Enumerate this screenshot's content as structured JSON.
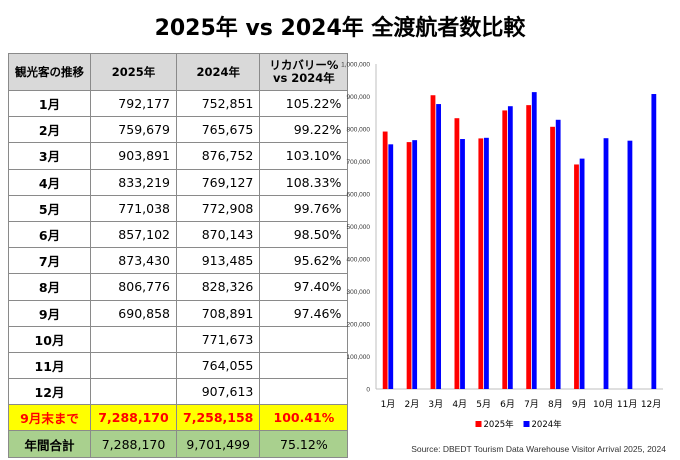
{
  "title": "2025年 vs 2024年 全渡航者数比較",
  "table": {
    "headers": [
      "観光客の推移",
      "2025年",
      "2024年",
      "リカバリー% vs 2024年"
    ],
    "rows": [
      {
        "month": "1月",
        "y2025": "792,177",
        "y2024": "752,851",
        "pct": "105.22%"
      },
      {
        "month": "2月",
        "y2025": "759,679",
        "y2024": "765,675",
        "pct": "99.22%"
      },
      {
        "month": "3月",
        "y2025": "903,891",
        "y2024": "876,752",
        "pct": "103.10%"
      },
      {
        "month": "4月",
        "y2025": "833,219",
        "y2024": "769,127",
        "pct": "108.33%"
      },
      {
        "month": "5月",
        "y2025": "771,038",
        "y2024": "772,908",
        "pct": "99.76%"
      },
      {
        "month": "6月",
        "y2025": "857,102",
        "y2024": "870,143",
        "pct": "98.50%"
      },
      {
        "month": "7月",
        "y2025": "873,430",
        "y2024": "913,485",
        "pct": "95.62%"
      },
      {
        "month": "8月",
        "y2025": "806,776",
        "y2024": "828,326",
        "pct": "97.40%"
      },
      {
        "month": "9月",
        "y2025": "690,858",
        "y2024": "708,891",
        "pct": "97.46%"
      },
      {
        "month": "10月",
        "y2025": "",
        "y2024": "771,673",
        "pct": ""
      },
      {
        "month": "11月",
        "y2025": "",
        "y2024": "764,055",
        "pct": ""
      },
      {
        "month": "12月",
        "y2025": "",
        "y2024": "907,613",
        "pct": ""
      }
    ],
    "ytd": {
      "label": "9月末まで",
      "y2025": "7,288,170",
      "y2024": "7,258,158",
      "pct": "100.41%"
    },
    "total": {
      "label": "年間合計",
      "y2025": "7,288,170",
      "y2024": "9,701,499",
      "pct": "75.12%"
    }
  },
  "source": "Source: DBEDT Tourism Data Warehouse Visitor Arrival 2025, 2024",
  "chart_data": {
    "type": "bar",
    "categories": [
      "1月",
      "2月",
      "3月",
      "4月",
      "5月",
      "6月",
      "7月",
      "8月",
      "9月",
      "10月",
      "11月",
      "12月"
    ],
    "series": [
      {
        "name": "2025年",
        "color": "#ff0000",
        "values": [
          792177,
          759679,
          903891,
          833219,
          771038,
          857102,
          873430,
          806776,
          690858,
          null,
          null,
          null
        ]
      },
      {
        "name": "2024年",
        "color": "#0000ff",
        "values": [
          752851,
          765675,
          876752,
          769127,
          772908,
          870143,
          913485,
          828326,
          708891,
          771673,
          764055,
          907613
        ]
      }
    ],
    "ylim": [
      0,
      1000000
    ],
    "yticks": [
      "0",
      "100,000",
      "200,000",
      "300,000",
      "400,000",
      "500,000",
      "600,000",
      "700,000",
      "800,000",
      "900,000",
      "1,000,000"
    ],
    "grid": false,
    "legend": "bottom"
  }
}
